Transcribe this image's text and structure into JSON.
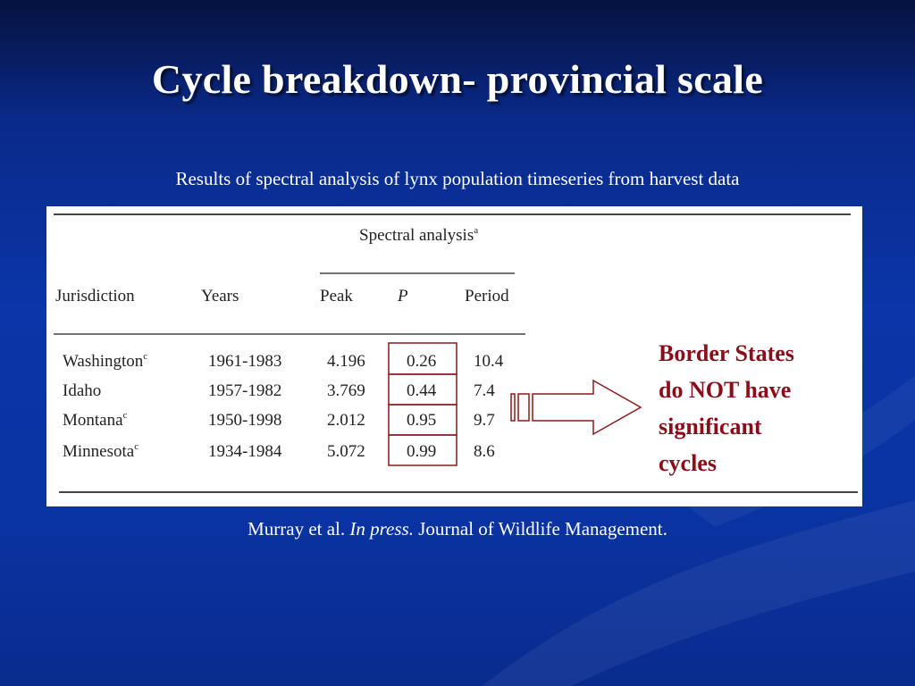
{
  "slide": {
    "title": "Cycle breakdown- provincial scale",
    "subtitle": "Results of spectral analysis of lynx population timeseries from harvest data",
    "note_lines": [
      "Border States",
      "do NOT have",
      "significant",
      "cycles"
    ],
    "citation": {
      "authors": "Murray et al.",
      "status": "In press.",
      "journal": "Journal of Wildlife Management."
    }
  },
  "table": {
    "group_header": "Spectral analysis",
    "group_header_sup": "a",
    "columns": [
      "Jurisdiction",
      "Years",
      "Peak",
      "P",
      "Period"
    ],
    "rows": [
      {
        "jurisdiction": "Washington",
        "sup": "c",
        "years": "1961-1983",
        "peak": "4.196",
        "p": "0.26",
        "period": "10.4"
      },
      {
        "jurisdiction": "Idaho",
        "sup": "",
        "years": "1957-1982",
        "peak": "3.769",
        "p": "0.44",
        "period": "7.4"
      },
      {
        "jurisdiction": "Montana",
        "sup": "c",
        "years": "1950-1998",
        "peak": "2.012",
        "p": "0.95",
        "period": "9.7"
      },
      {
        "jurisdiction": "Minnesota",
        "sup": "c",
        "years": "1934-1984",
        "peak": "5.072",
        "p": "0.99",
        "period": "8.6"
      }
    ]
  },
  "colors": {
    "note_text": "#8b0d1a",
    "p_box_border": "#8b1a1a",
    "arrow_border": "#8b1a1a"
  }
}
